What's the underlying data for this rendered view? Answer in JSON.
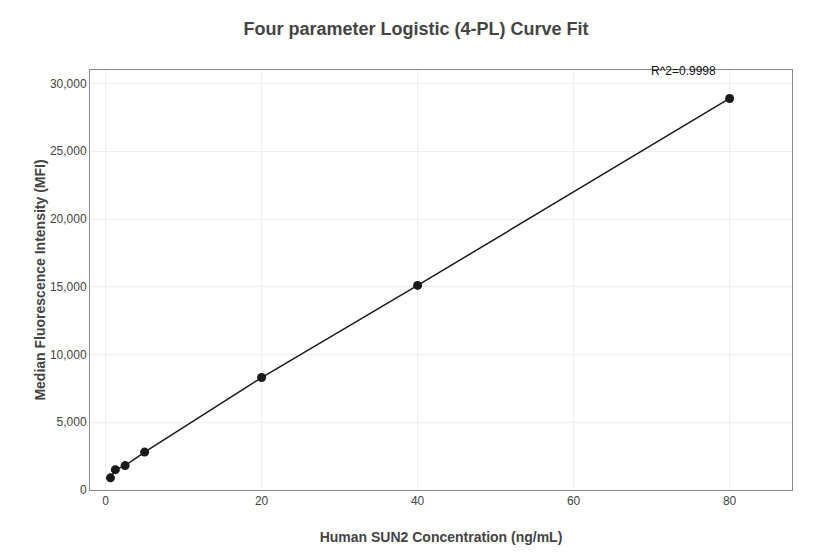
{
  "chart_data": {
    "type": "line",
    "title": "Four parameter Logistic (4-PL) Curve Fit",
    "xlabel": "Human SUN2 Concentration (ng/mL)",
    "ylabel": "Median Fluorescence Intensity (MFI)",
    "x": [
      0.625,
      1.25,
      2.5,
      5.0,
      20.0,
      40.0,
      80.0
    ],
    "values": [
      900,
      1500,
      1800,
      2800,
      8300,
      15100,
      28900
    ],
    "color": "#1a1a1a",
    "marker": "circle",
    "line_style": "solid",
    "xlim": [
      -2,
      88
    ],
    "ylim": [
      0,
      31000
    ],
    "xticks": [
      0,
      20,
      40,
      60,
      80
    ],
    "yticks": [
      0,
      {
        "value": 5000,
        "label": "5,000"
      },
      {
        "value": 10000,
        "label": "10,000"
      },
      {
        "value": 15000,
        "label": "15,000"
      },
      {
        "value": 20000,
        "label": "20,000"
      },
      {
        "value": 25000,
        "label": "25,000"
      },
      {
        "value": 30000,
        "label": "30,000"
      }
    ],
    "annotations": [
      "R^2=0.9998"
    ],
    "grid": true
  }
}
